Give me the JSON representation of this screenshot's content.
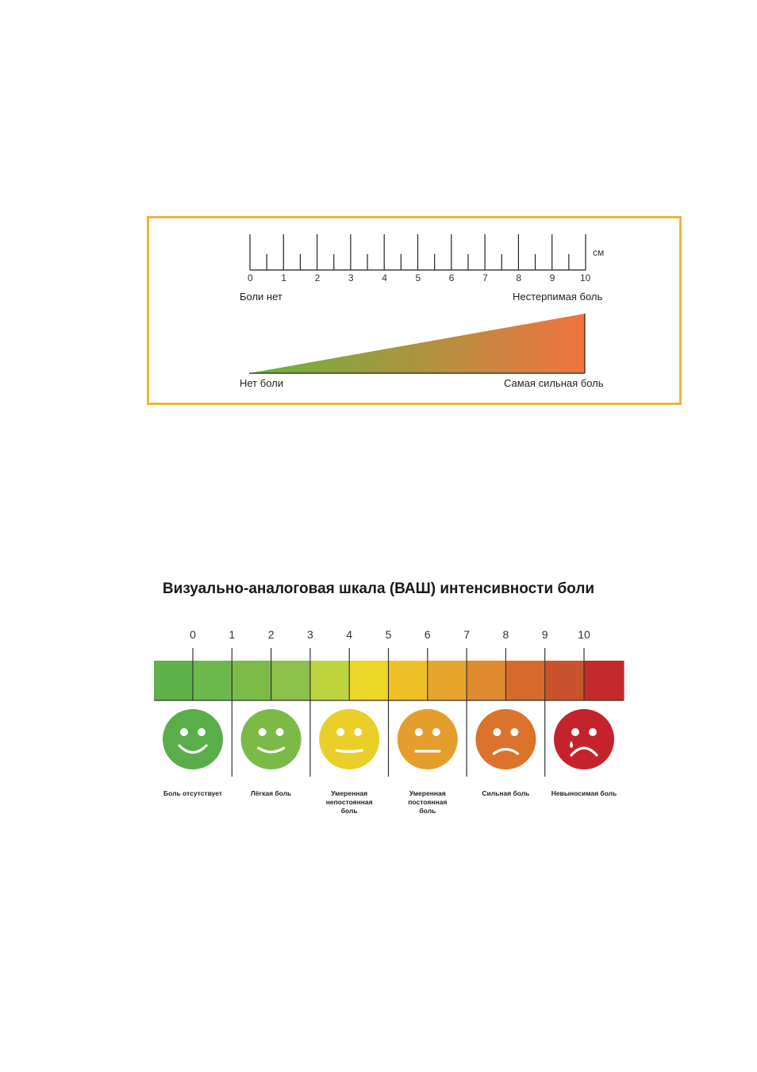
{
  "ruler": {
    "unit": "см",
    "ticks": [
      "0",
      "1",
      "2",
      "3",
      "4",
      "5",
      "6",
      "7",
      "8",
      "9",
      "10"
    ],
    "left_label": "Боли нет",
    "right_label": "Нестерпимая боль",
    "wedge_left_label": "Нет боли",
    "wedge_right_label": "Самая сильная боль",
    "wedge_colors": [
      "#6AB43E",
      "#F07340"
    ],
    "border_color": "#E8B83A"
  },
  "vas": {
    "title": "Визуально-аналоговая шкала (ВАШ) интенсивности боли",
    "ticks": [
      "0",
      "1",
      "2",
      "3",
      "4",
      "5",
      "6",
      "7",
      "8",
      "9",
      "10"
    ],
    "bar_colors": [
      "#5FB24A",
      "#6DB84A",
      "#7CBC46",
      "#8CC04A",
      "#BDD43F",
      "#ECD628",
      "#EEC028",
      "#E8A52E",
      "#DF8A2E",
      "#D66A2C",
      "#C9532D",
      "#C42A2B"
    ],
    "faces": [
      {
        "mood": "happy",
        "color": "#5AAE4A",
        "label": "Боль отсутствует"
      },
      {
        "mood": "smile",
        "color": "#7BBA47",
        "label": "Лёгкая боль"
      },
      {
        "mood": "slight",
        "color": "#EACF2A",
        "label": "Умеренная непостоянная боль"
      },
      {
        "mood": "neutral",
        "color": "#E59E2C",
        "label": "Умеренная постоянная боль"
      },
      {
        "mood": "sad",
        "color": "#DC732C",
        "label": "Сильная боль"
      },
      {
        "mood": "cry",
        "color": "#C4232B",
        "label": "Невыносимая боль"
      }
    ]
  }
}
